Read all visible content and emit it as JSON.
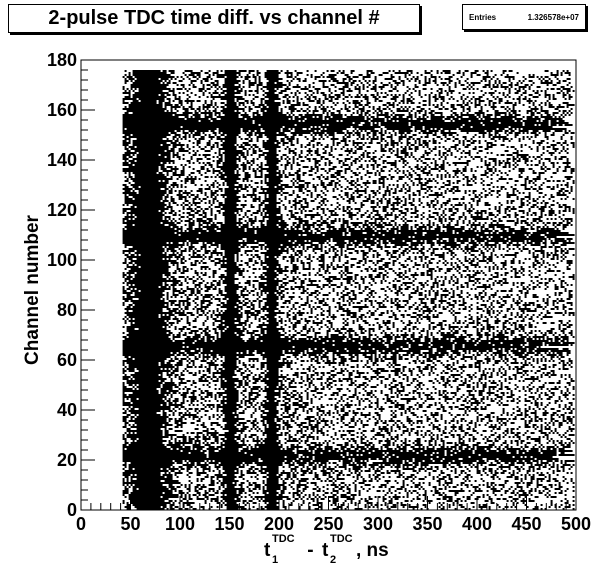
{
  "chart_data": {
    "type": "heatmap",
    "title": "2-pulse TDC time diff. vs channel #",
    "stats": {
      "label": "Entries",
      "value": "1.326578e+07"
    },
    "xlabel": {
      "t1": "t",
      "sup1": "TDC",
      "sub1": "1",
      "minus": " - ",
      "t2": "t",
      "sup2": "TDC",
      "sub2": "2",
      "unit": ", ns"
    },
    "ylabel": "Channel number",
    "xlim": [
      0,
      500
    ],
    "ylim": [
      0,
      180
    ],
    "x_ticks": [
      0,
      50,
      100,
      150,
      200,
      250,
      300,
      350,
      400,
      450,
      500
    ],
    "y_ticks": [
      0,
      20,
      40,
      60,
      80,
      100,
      120,
      140,
      160,
      180
    ],
    "data_x_range": [
      42,
      500
    ],
    "data_y_range": [
      0,
      176
    ],
    "dense_vertical_bands_ns": [
      60,
      75,
      150,
      192
    ],
    "dense_horizontal_bands_channel": [
      22,
      66,
      110,
      155
    ]
  }
}
